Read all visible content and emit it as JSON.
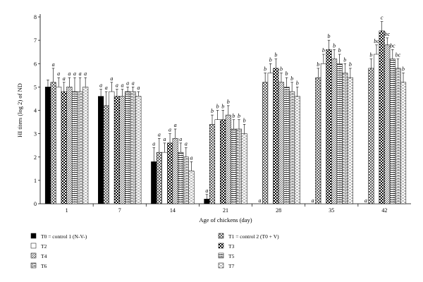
{
  "chart_data": {
    "type": "bar",
    "xlabel": "Age of chickens (day)",
    "ylabel": "HI titers (log 2) of ND",
    "ylim": [
      0,
      8
    ],
    "yticks": [
      0,
      1,
      2,
      3,
      4,
      5,
      6,
      7,
      8
    ],
    "categories": [
      "1",
      "7",
      "14",
      "21",
      "28",
      "35",
      "42"
    ],
    "grid": false,
    "legend_position": "bottom",
    "series": [
      {
        "name": "T0 = control 1 (N-V-)",
        "pattern": "solid",
        "values": [
          5.0,
          4.6,
          1.8,
          0.2,
          0,
          0,
          0
        ],
        "errors": [
          0.3,
          0.3,
          0.6,
          0.2,
          0,
          0,
          0
        ],
        "labels": [
          "",
          "a",
          "a",
          "a",
          "a",
          "a",
          "a"
        ]
      },
      {
        "name": "T1 = control 2 (T0 + V)",
        "pattern": "crosshatch",
        "values": [
          5.2,
          4.2,
          2.2,
          3.4,
          5.2,
          5.4,
          5.8
        ],
        "errors": [
          0.6,
          0.6,
          0.6,
          0.4,
          0.4,
          0.4,
          0.4
        ],
        "labels": [
          "a",
          "a",
          "a",
          "b",
          "b",
          "b",
          "b"
        ]
      },
      {
        "name": "T2",
        "pattern": "open",
        "values": [
          5.0,
          4.8,
          2.2,
          3.6,
          5.6,
          6.0,
          6.4
        ],
        "errors": [
          0.4,
          0.4,
          0.4,
          0.4,
          0.4,
          0.4,
          0.4
        ],
        "labels": [
          "a",
          "a",
          "a",
          "b",
          "b",
          "b",
          "bc"
        ]
      },
      {
        "name": "T3",
        "pattern": "checker",
        "values": [
          4.8,
          4.6,
          2.6,
          3.6,
          5.8,
          6.6,
          7.4
        ],
        "errors": [
          0.4,
          0.3,
          0.4,
          0.4,
          0.4,
          0.4,
          0.4
        ],
        "labels": [
          "a",
          "a",
          "a",
          "b",
          "b",
          "b",
          "c"
        ]
      },
      {
        "name": "T4",
        "pattern": "diagonal",
        "values": [
          5.0,
          4.6,
          2.8,
          3.8,
          5.2,
          6.2,
          6.8
        ],
        "errors": [
          0.4,
          0.3,
          0.4,
          0.4,
          0.4,
          0.4,
          0.3
        ],
        "labels": [
          "a",
          "a",
          "a",
          "b",
          "b",
          "b",
          "bc"
        ]
      },
      {
        "name": "T5",
        "pattern": "hline",
        "values": [
          4.8,
          4.8,
          2.2,
          3.2,
          5.0,
          6.0,
          6.2
        ],
        "errors": [
          0.6,
          0.2,
          0.4,
          0.4,
          0.4,
          0.4,
          0.4
        ],
        "labels": [
          "a",
          "a",
          "a",
          "b",
          "b",
          "b",
          "bc"
        ]
      },
      {
        "name": "T6",
        "pattern": "brick",
        "values": [
          4.8,
          4.8,
          2.0,
          3.2,
          4.8,
          5.6,
          5.8
        ],
        "errors": [
          0.6,
          0.2,
          0.4,
          0.4,
          0.4,
          0.4,
          0.4
        ],
        "labels": [
          "a",
          "a",
          "a",
          "b",
          "b",
          "b",
          "bc"
        ]
      },
      {
        "name": "T7",
        "pattern": "dashed",
        "values": [
          5.0,
          4.6,
          1.4,
          3.0,
          4.6,
          5.4,
          5.2
        ],
        "errors": [
          0.4,
          0.2,
          0.4,
          0.4,
          0.4,
          0.4,
          0.4
        ],
        "labels": [
          "a",
          "a",
          "a",
          "b",
          "b",
          "b",
          "b"
        ]
      }
    ]
  }
}
